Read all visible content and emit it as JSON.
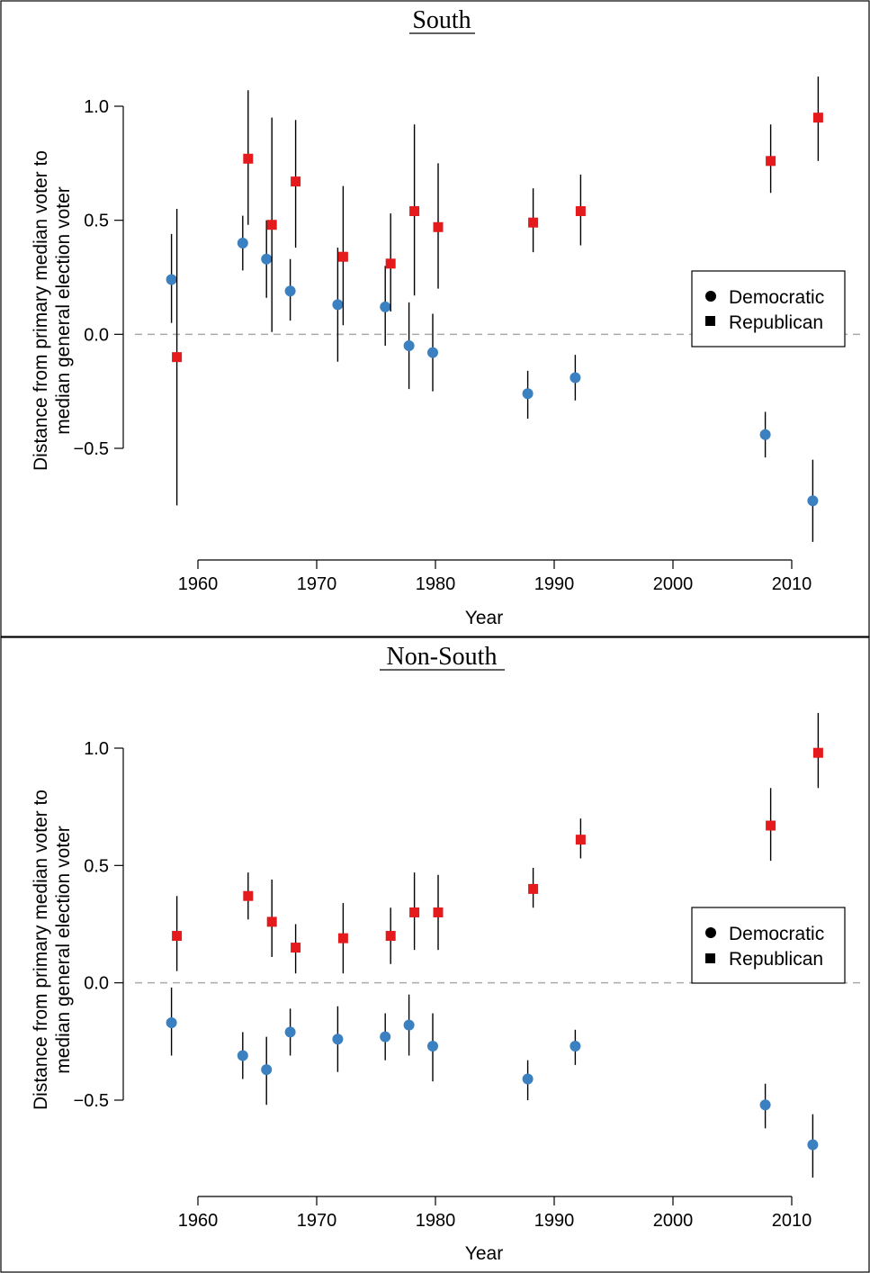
{
  "colors": {
    "democratic": "#3b80c0",
    "republican": "#e41a1c",
    "errorbar": "#000000",
    "zero_line": "#aaaaaa"
  },
  "chart_data": [
    {
      "type": "scatter",
      "title": "South",
      "xlabel": "Year",
      "ylabel": "Distance from primary median voter to\nmedian general election voter",
      "xlim": [
        1960,
        2010
      ],
      "ylim": [
        -0.9,
        1.2
      ],
      "xticks": [
        1960,
        1970,
        1980,
        1990,
        2000,
        2010
      ],
      "yticks": [
        1.0,
        0.5,
        0.0,
        -0.5
      ],
      "ytick_labels": [
        "1.0",
        "0.5",
        "0.0",
        "−0.5"
      ],
      "zero_line": true,
      "legend": {
        "position": "right",
        "entries": [
          "Democratic",
          "Republican"
        ]
      },
      "series": [
        {
          "name": "Democratic",
          "marker": "circle",
          "points": [
            {
              "x": 1958,
              "y": 0.24,
              "lo": 0.05,
              "hi": 0.44
            },
            {
              "x": 1964,
              "y": 0.4,
              "lo": 0.28,
              "hi": 0.52
            },
            {
              "x": 1966,
              "y": 0.33,
              "lo": 0.16,
              "hi": 0.5
            },
            {
              "x": 1968,
              "y": 0.19,
              "lo": 0.06,
              "hi": 0.33
            },
            {
              "x": 1972,
              "y": 0.13,
              "lo": -0.12,
              "hi": 0.38
            },
            {
              "x": 1976,
              "y": 0.12,
              "lo": -0.05,
              "hi": 0.3
            },
            {
              "x": 1978,
              "y": -0.05,
              "lo": -0.24,
              "hi": 0.14
            },
            {
              "x": 1980,
              "y": -0.08,
              "lo": -0.25,
              "hi": 0.09
            },
            {
              "x": 1988,
              "y": -0.26,
              "lo": -0.37,
              "hi": -0.16
            },
            {
              "x": 1992,
              "y": -0.19,
              "lo": -0.29,
              "hi": -0.09
            },
            {
              "x": 2008,
              "y": -0.44,
              "lo": -0.54,
              "hi": -0.34
            },
            {
              "x": 2012,
              "y": -0.73,
              "lo": -0.91,
              "hi": -0.55
            }
          ]
        },
        {
          "name": "Republican",
          "marker": "square",
          "points": [
            {
              "x": 1958,
              "y": -0.1,
              "lo": -0.75,
              "hi": 0.55
            },
            {
              "x": 1964,
              "y": 0.77,
              "lo": 0.48,
              "hi": 1.07
            },
            {
              "x": 1966,
              "y": 0.48,
              "lo": 0.01,
              "hi": 0.95
            },
            {
              "x": 1968,
              "y": 0.67,
              "lo": 0.38,
              "hi": 0.94
            },
            {
              "x": 1972,
              "y": 0.34,
              "lo": 0.04,
              "hi": 0.65
            },
            {
              "x": 1976,
              "y": 0.31,
              "lo": 0.1,
              "hi": 0.53
            },
            {
              "x": 1978,
              "y": 0.54,
              "lo": 0.17,
              "hi": 0.92
            },
            {
              "x": 1980,
              "y": 0.47,
              "lo": 0.2,
              "hi": 0.75
            },
            {
              "x": 1988,
              "y": 0.49,
              "lo": 0.36,
              "hi": 0.64
            },
            {
              "x": 1992,
              "y": 0.54,
              "lo": 0.39,
              "hi": 0.7
            },
            {
              "x": 2008,
              "y": 0.76,
              "lo": 0.62,
              "hi": 0.92
            },
            {
              "x": 2012,
              "y": 0.95,
              "lo": 0.76,
              "hi": 1.13
            }
          ]
        }
      ]
    },
    {
      "type": "scatter",
      "title": "Non-South",
      "xlabel": "Year",
      "ylabel": "Distance from primary median voter to\nmedian general election voter",
      "xlim": [
        1960,
        2010
      ],
      "ylim": [
        -0.9,
        1.2
      ],
      "xticks": [
        1960,
        1970,
        1980,
        1990,
        2000,
        2010
      ],
      "yticks": [
        1.0,
        0.5,
        0.0,
        -0.5
      ],
      "ytick_labels": [
        "1.0",
        "0.5",
        "0.0",
        "−0.5"
      ],
      "zero_line": true,
      "legend": {
        "position": "right",
        "entries": [
          "Democratic",
          "Republican"
        ]
      },
      "series": [
        {
          "name": "Democratic",
          "marker": "circle",
          "points": [
            {
              "x": 1958,
              "y": -0.17,
              "lo": -0.31,
              "hi": -0.02
            },
            {
              "x": 1964,
              "y": -0.31,
              "lo": -0.41,
              "hi": -0.21
            },
            {
              "x": 1966,
              "y": -0.37,
              "lo": -0.52,
              "hi": -0.23
            },
            {
              "x": 1968,
              "y": -0.21,
              "lo": -0.31,
              "hi": -0.11
            },
            {
              "x": 1972,
              "y": -0.24,
              "lo": -0.38,
              "hi": -0.1
            },
            {
              "x": 1976,
              "y": -0.23,
              "lo": -0.33,
              "hi": -0.13
            },
            {
              "x": 1978,
              "y": -0.18,
              "lo": -0.31,
              "hi": -0.05
            },
            {
              "x": 1980,
              "y": -0.27,
              "lo": -0.42,
              "hi": -0.13
            },
            {
              "x": 1988,
              "y": -0.41,
              "lo": -0.5,
              "hi": -0.33
            },
            {
              "x": 1992,
              "y": -0.27,
              "lo": -0.35,
              "hi": -0.2
            },
            {
              "x": 2008,
              "y": -0.52,
              "lo": -0.62,
              "hi": -0.43
            },
            {
              "x": 2012,
              "y": -0.69,
              "lo": -0.83,
              "hi": -0.56
            }
          ]
        },
        {
          "name": "Republican",
          "marker": "square",
          "points": [
            {
              "x": 1958,
              "y": 0.2,
              "lo": 0.05,
              "hi": 0.37
            },
            {
              "x": 1964,
              "y": 0.37,
              "lo": 0.27,
              "hi": 0.47
            },
            {
              "x": 1966,
              "y": 0.26,
              "lo": 0.11,
              "hi": 0.44
            },
            {
              "x": 1968,
              "y": 0.15,
              "lo": 0.04,
              "hi": 0.25
            },
            {
              "x": 1972,
              "y": 0.19,
              "lo": 0.04,
              "hi": 0.34
            },
            {
              "x": 1976,
              "y": 0.2,
              "lo": 0.08,
              "hi": 0.32
            },
            {
              "x": 1978,
              "y": 0.3,
              "lo": 0.14,
              "hi": 0.47
            },
            {
              "x": 1980,
              "y": 0.3,
              "lo": 0.14,
              "hi": 0.46
            },
            {
              "x": 1988,
              "y": 0.4,
              "lo": 0.32,
              "hi": 0.49
            },
            {
              "x": 1992,
              "y": 0.61,
              "lo": 0.53,
              "hi": 0.7
            },
            {
              "x": 2008,
              "y": 0.67,
              "lo": 0.52,
              "hi": 0.83
            },
            {
              "x": 2012,
              "y": 0.98,
              "lo": 0.83,
              "hi": 1.15
            }
          ]
        }
      ]
    }
  ]
}
